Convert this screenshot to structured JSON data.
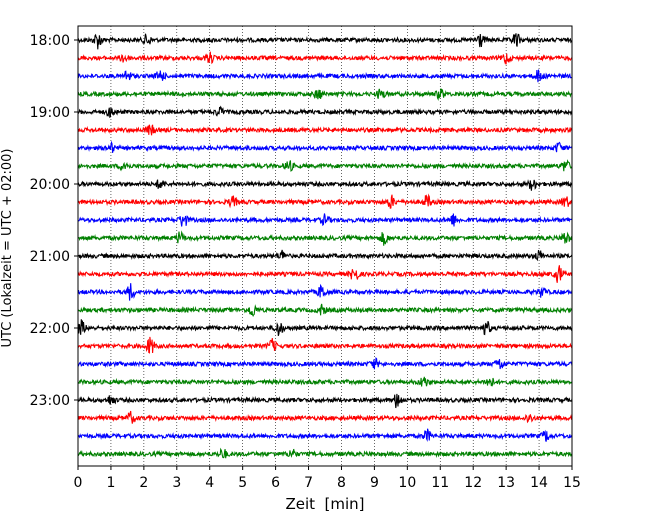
{
  "chart_data": {
    "type": "line",
    "title": "",
    "xlabel": "Zeit  [min]",
    "ylabel": "UTC (Lokalzeit = UTC + 02:00)",
    "xlim": [
      0,
      15
    ],
    "x_ticks": [
      0,
      1,
      2,
      3,
      4,
      5,
      6,
      7,
      8,
      9,
      10,
      11,
      12,
      13,
      14,
      15
    ],
    "y_time_ticks": [
      "18:00",
      "19:00",
      "20:00",
      "21:00",
      "22:00",
      "23:00"
    ],
    "start_time": "18:00",
    "row_interval_min": 15,
    "grid_x": "dotted",
    "trace_colors": [
      "#000000",
      "#ff0000",
      "#0000ff",
      "#008000"
    ],
    "trace_rows": [
      "18:00",
      "18:15",
      "18:30",
      "18:45",
      "19:00",
      "19:15",
      "19:30",
      "19:45",
      "20:00",
      "20:15",
      "20:30",
      "20:45",
      "21:00",
      "21:15",
      "21:30",
      "21:45",
      "22:00",
      "22:15",
      "22:30",
      "22:45",
      "23:00",
      "23:15",
      "23:30",
      "23:45"
    ],
    "events": {
      "18:00": [
        [
          0.6,
          1.3
        ],
        [
          2.1,
          0.9
        ],
        [
          12.2,
          1.2
        ],
        [
          13.3,
          1.1
        ]
      ],
      "18:15": [
        [
          1.4,
          0.8
        ],
        [
          4.0,
          0.8
        ],
        [
          13.0,
          0.9
        ]
      ],
      "18:30": [
        [
          1.5,
          0.9
        ],
        [
          2.5,
          1.0
        ],
        [
          14.0,
          1.0
        ]
      ],
      "18:45": [
        [
          7.3,
          0.8
        ],
        [
          9.2,
          0.8
        ],
        [
          11.0,
          0.8
        ]
      ],
      "19:00": [
        [
          1.0,
          0.8
        ],
        [
          4.3,
          0.7
        ]
      ],
      "19:15": [
        [
          2.2,
          0.8
        ]
      ],
      "19:30": [
        [
          1.0,
          0.7
        ],
        [
          14.6,
          0.8
        ]
      ],
      "19:45": [
        [
          1.4,
          0.8
        ],
        [
          6.4,
          0.9
        ],
        [
          14.8,
          0.9
        ]
      ],
      "20:00": [
        [
          2.5,
          0.8
        ],
        [
          13.8,
          0.9
        ]
      ],
      "20:15": [
        [
          4.7,
          0.8
        ],
        [
          9.5,
          1.0
        ],
        [
          10.6,
          1.0
        ],
        [
          14.8,
          0.9
        ]
      ],
      "20:30": [
        [
          3.2,
          1.2
        ],
        [
          7.5,
          0.8
        ],
        [
          11.4,
          0.9
        ]
      ],
      "20:45": [
        [
          3.1,
          0.9
        ],
        [
          9.3,
          1.0
        ],
        [
          14.8,
          1.0
        ]
      ],
      "21:00": [
        [
          6.2,
          0.8
        ],
        [
          14.0,
          0.8
        ]
      ],
      "21:15": [
        [
          8.4,
          1.3
        ],
        [
          14.6,
          1.4
        ]
      ],
      "21:30": [
        [
          1.6,
          1.3
        ],
        [
          7.4,
          1.1
        ],
        [
          14.1,
          0.8
        ]
      ],
      "21:45": [
        [
          5.3,
          1.0
        ],
        [
          7.4,
          0.8
        ]
      ],
      "22:00": [
        [
          0.1,
          1.2
        ],
        [
          6.1,
          1.2
        ],
        [
          12.4,
          1.1
        ]
      ],
      "22:15": [
        [
          2.2,
          1.4
        ],
        [
          5.9,
          1.0
        ]
      ],
      "22:30": [
        [
          9.0,
          0.8
        ],
        [
          12.8,
          0.9
        ]
      ],
      "22:45": [
        [
          10.5,
          0.9
        ],
        [
          12.5,
          0.9
        ]
      ],
      "23:00": [
        [
          1.0,
          0.8
        ],
        [
          9.7,
          1.3
        ]
      ],
      "23:15": [
        [
          1.6,
          0.9
        ],
        [
          13.7,
          0.7
        ]
      ],
      "23:30": [
        [
          10.6,
          0.9
        ],
        [
          14.2,
          0.8
        ]
      ],
      "23:45": [
        [
          4.4,
          0.8
        ],
        [
          6.5,
          0.7
        ]
      ]
    }
  }
}
